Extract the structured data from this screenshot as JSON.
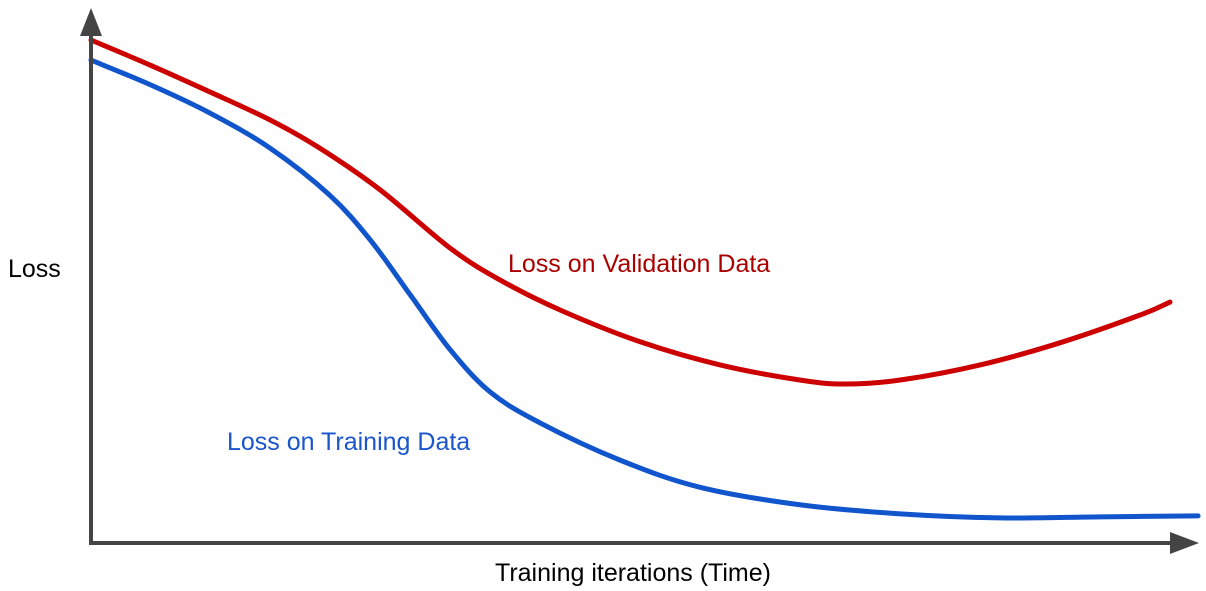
{
  "chart_data": {
    "type": "line",
    "title": "",
    "xlabel": "Training iterations (Time)",
    "ylabel": "Loss",
    "xlim": [
      0,
      100
    ],
    "ylim": [
      0,
      100
    ],
    "grid": false,
    "ticks": false,
    "legend": "inline labels",
    "axis_color": "#444444",
    "series": [
      {
        "name": "Loss on Validation Data",
        "color": "#cc0000",
        "label_color": "#aa0000",
        "x": [
          0,
          5.5,
          11.0,
          16.6,
          21.2,
          26.8,
          33.3,
          37.9,
          43.5,
          50.9,
          58.3,
          65.7,
          69.9,
          75.0,
          82.4,
          89.8,
          97.2,
          100
        ],
        "y": [
          100,
          95,
          89.7,
          84.1,
          78.5,
          70.2,
          58.6,
          52.3,
          46.3,
          40.0,
          35.4,
          32.4,
          31.6,
          32.4,
          35.4,
          39.8,
          45.3,
          47.9
        ]
      },
      {
        "name": "Loss on Training Data",
        "color": "#1155cc",
        "label_color": "#1a55cc",
        "x": [
          0,
          5.5,
          11.0,
          16.6,
          22.1,
          25.9,
          29.6,
          33.3,
          37.0,
          41.6,
          49.0,
          56.4,
          65.7,
          75.0,
          84.2,
          93.5,
          102.6
        ],
        "y": [
          96.0,
          91.1,
          85.5,
          78.5,
          69.2,
          60.2,
          49.3,
          38.4,
          30.0,
          23.9,
          16.5,
          11.1,
          7.6,
          5.8,
          5.0,
          5.2,
          5.4
        ]
      }
    ]
  }
}
